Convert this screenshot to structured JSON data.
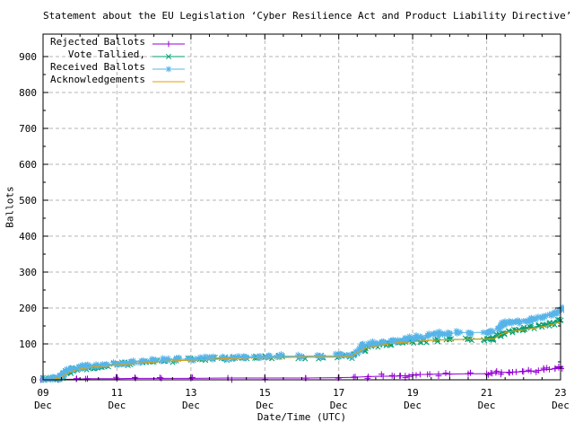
{
  "window": {
    "background": "#ffffff"
  },
  "chart_data": {
    "type": "line",
    "title": "Statement about the EU Legislation ‘Cyber Resilience Act and Product Liability Directive’",
    "xlabel": "Date/Time (UTC)",
    "ylabel": "Ballots",
    "x_range": [
      9,
      23
    ],
    "ylim": [
      0,
      960
    ],
    "y_ticks": [
      0,
      100,
      200,
      300,
      400,
      500,
      600,
      700,
      800,
      900
    ],
    "y_minor_step": 50,
    "x_minor_step": 0.5,
    "x_ticks": [
      {
        "day": 9,
        "line1": "09",
        "line2": "Dec"
      },
      {
        "day": 11,
        "line1": "11",
        "line2": "Dec"
      },
      {
        "day": 13,
        "line1": "13",
        "line2": "Dec"
      },
      {
        "day": 15,
        "line1": "15",
        "line2": "Dec"
      },
      {
        "day": 17,
        "line1": "17",
        "line2": "Dec"
      },
      {
        "day": 19,
        "line1": "19",
        "line2": "Dec"
      },
      {
        "day": 21,
        "line1": "21",
        "line2": "Dec"
      },
      {
        "day": 23,
        "line1": "23",
        "line2": "Dec"
      }
    ],
    "grid": {
      "color": "#b4b4b4",
      "dash": "4,3",
      "on": true
    },
    "axis_color": "#000000",
    "legend": {
      "position": "top-left",
      "order": [
        "Rejected Ballots",
        "Vote Tallied,",
        "Received Ballots",
        "Acknowledgements"
      ]
    },
    "series": [
      {
        "name": "Rejected Ballots",
        "color": "#9400D3",
        "marker": "plus",
        "cluster_extras": 1,
        "points": [
          [
            9.0,
            0
          ],
          [
            9.4,
            1
          ],
          [
            9.9,
            2
          ],
          [
            10.2,
            3
          ],
          [
            11.0,
            3
          ],
          [
            11.5,
            4
          ],
          [
            12.2,
            4
          ],
          [
            13.0,
            4
          ],
          [
            14.0,
            5
          ],
          [
            15.0,
            5
          ],
          [
            16.1,
            5
          ],
          [
            17.0,
            6
          ],
          [
            17.4,
            7
          ],
          [
            17.8,
            9
          ],
          [
            18.2,
            10
          ],
          [
            18.5,
            10
          ],
          [
            18.65,
            11
          ],
          [
            18.8,
            11
          ],
          [
            19.0,
            14
          ],
          [
            19.2,
            15
          ],
          [
            19.4,
            15
          ],
          [
            19.7,
            16
          ],
          [
            20.0,
            16
          ],
          [
            20.5,
            17
          ],
          [
            21.0,
            17
          ],
          [
            21.15,
            18
          ],
          [
            21.25,
            20
          ],
          [
            21.4,
            21
          ],
          [
            21.6,
            21
          ],
          [
            21.8,
            22
          ],
          [
            22.0,
            23
          ],
          [
            22.2,
            24
          ],
          [
            22.4,
            26
          ],
          [
            22.55,
            28
          ],
          [
            22.7,
            29
          ],
          [
            22.85,
            31
          ],
          [
            22.95,
            34
          ],
          [
            23.0,
            36
          ]
        ]
      },
      {
        "name": "Vote Tallied,",
        "color": "#009E73",
        "marker": "cross",
        "cluster_extras": 4,
        "points": [
          [
            9.0,
            1
          ],
          [
            9.2,
            2
          ],
          [
            9.35,
            3
          ],
          [
            9.45,
            6
          ],
          [
            9.55,
            13
          ],
          [
            9.65,
            20
          ],
          [
            9.75,
            25
          ],
          [
            9.85,
            28
          ],
          [
            10.0,
            31
          ],
          [
            10.15,
            33
          ],
          [
            10.3,
            35
          ],
          [
            10.5,
            37
          ],
          [
            10.7,
            39
          ],
          [
            11.0,
            41
          ],
          [
            11.2,
            44
          ],
          [
            11.4,
            46
          ],
          [
            11.7,
            48
          ],
          [
            12.0,
            50
          ],
          [
            12.3,
            52
          ],
          [
            12.6,
            53
          ],
          [
            13.0,
            55
          ],
          [
            13.3,
            56
          ],
          [
            13.6,
            58
          ],
          [
            13.9,
            59
          ],
          [
            14.2,
            60
          ],
          [
            14.5,
            61
          ],
          [
            14.8,
            62
          ],
          [
            15.1,
            62
          ],
          [
            15.4,
            63
          ],
          [
            16.0,
            63
          ],
          [
            16.5,
            63
          ],
          [
            17.0,
            64
          ],
          [
            17.3,
            64
          ],
          [
            17.5,
            75
          ],
          [
            17.65,
            85
          ],
          [
            17.8,
            91
          ],
          [
            18.0,
            95
          ],
          [
            18.2,
            98
          ],
          [
            18.4,
            101
          ],
          [
            18.6,
            103
          ],
          [
            18.8,
            105
          ],
          [
            19.0,
            107
          ],
          [
            19.3,
            109
          ],
          [
            19.6,
            111
          ],
          [
            20.0,
            112
          ],
          [
            20.5,
            113
          ],
          [
            21.0,
            114
          ],
          [
            21.15,
            115
          ],
          [
            21.3,
            124
          ],
          [
            21.45,
            131
          ],
          [
            21.6,
            136
          ],
          [
            21.8,
            139
          ],
          [
            22.0,
            142
          ],
          [
            22.2,
            146
          ],
          [
            22.4,
            149
          ],
          [
            22.6,
            153
          ],
          [
            22.8,
            158
          ],
          [
            23.0,
            165
          ]
        ]
      },
      {
        "name": "Received Ballots",
        "color": "#56B4E9",
        "marker": "asterisk",
        "cluster_extras": 4,
        "points": [
          [
            9.0,
            2
          ],
          [
            9.2,
            3
          ],
          [
            9.35,
            4
          ],
          [
            9.45,
            8
          ],
          [
            9.55,
            16
          ],
          [
            9.65,
            24
          ],
          [
            9.75,
            29
          ],
          [
            9.85,
            32
          ],
          [
            10.0,
            35
          ],
          [
            10.15,
            37
          ],
          [
            10.3,
            38
          ],
          [
            10.5,
            40
          ],
          [
            10.7,
            42
          ],
          [
            11.0,
            44
          ],
          [
            11.2,
            47
          ],
          [
            11.4,
            50
          ],
          [
            11.7,
            52
          ],
          [
            12.0,
            54
          ],
          [
            12.3,
            56
          ],
          [
            12.6,
            57
          ],
          [
            13.0,
            58
          ],
          [
            13.3,
            60
          ],
          [
            13.6,
            61
          ],
          [
            13.9,
            62
          ],
          [
            14.2,
            63
          ],
          [
            14.5,
            64
          ],
          [
            14.8,
            65
          ],
          [
            15.1,
            65
          ],
          [
            15.4,
            66
          ],
          [
            16.0,
            66
          ],
          [
            16.5,
            67
          ],
          [
            17.0,
            67
          ],
          [
            17.3,
            68
          ],
          [
            17.45,
            78
          ],
          [
            17.55,
            88
          ],
          [
            17.65,
            95
          ],
          [
            17.8,
            100
          ],
          [
            18.0,
            103
          ],
          [
            18.2,
            106
          ],
          [
            18.4,
            109
          ],
          [
            18.6,
            111
          ],
          [
            18.8,
            114
          ],
          [
            19.0,
            117
          ],
          [
            19.2,
            121
          ],
          [
            19.4,
            124
          ],
          [
            19.6,
            127
          ],
          [
            19.8,
            129
          ],
          [
            20.0,
            130
          ],
          [
            20.2,
            131
          ],
          [
            20.5,
            132
          ],
          [
            21.0,
            132
          ],
          [
            21.15,
            133
          ],
          [
            21.3,
            143
          ],
          [
            21.4,
            150
          ],
          [
            21.5,
            155
          ],
          [
            21.6,
            158
          ],
          [
            21.8,
            161
          ],
          [
            22.0,
            164
          ],
          [
            22.15,
            168
          ],
          [
            22.3,
            172
          ],
          [
            22.5,
            176
          ],
          [
            22.7,
            182
          ],
          [
            22.85,
            189
          ],
          [
            23.0,
            197
          ]
        ]
      },
      {
        "name": "Acknowledgements",
        "color": "#E69F00",
        "marker": "none",
        "cluster_extras": 0,
        "points": [
          [
            9.0,
            1
          ],
          [
            9.3,
            2
          ],
          [
            9.45,
            5
          ],
          [
            9.6,
            14
          ],
          [
            9.75,
            22
          ],
          [
            9.9,
            28
          ],
          [
            10.1,
            32
          ],
          [
            10.3,
            35
          ],
          [
            10.6,
            38
          ],
          [
            11.0,
            41
          ],
          [
            11.4,
            45
          ],
          [
            11.8,
            48
          ],
          [
            12.2,
            51
          ],
          [
            12.6,
            53
          ],
          [
            13.0,
            55
          ],
          [
            13.5,
            57
          ],
          [
            14.0,
            59
          ],
          [
            14.5,
            61
          ],
          [
            15.0,
            62
          ],
          [
            15.5,
            62
          ],
          [
            16.0,
            63
          ],
          [
            16.5,
            63
          ],
          [
            17.0,
            63
          ],
          [
            17.35,
            65
          ],
          [
            17.5,
            76
          ],
          [
            17.7,
            87
          ],
          [
            18.0,
            94
          ],
          [
            18.3,
            99
          ],
          [
            18.6,
            103
          ],
          [
            19.0,
            106
          ],
          [
            19.4,
            109
          ],
          [
            19.8,
            111
          ],
          [
            20.2,
            112
          ],
          [
            20.6,
            113
          ],
          [
            21.0,
            113
          ],
          [
            21.2,
            114
          ],
          [
            21.35,
            125
          ],
          [
            21.5,
            131
          ],
          [
            21.7,
            135
          ],
          [
            22.0,
            139
          ],
          [
            22.3,
            144
          ],
          [
            22.6,
            150
          ],
          [
            22.8,
            155
          ],
          [
            23.0,
            161
          ]
        ]
      }
    ]
  }
}
